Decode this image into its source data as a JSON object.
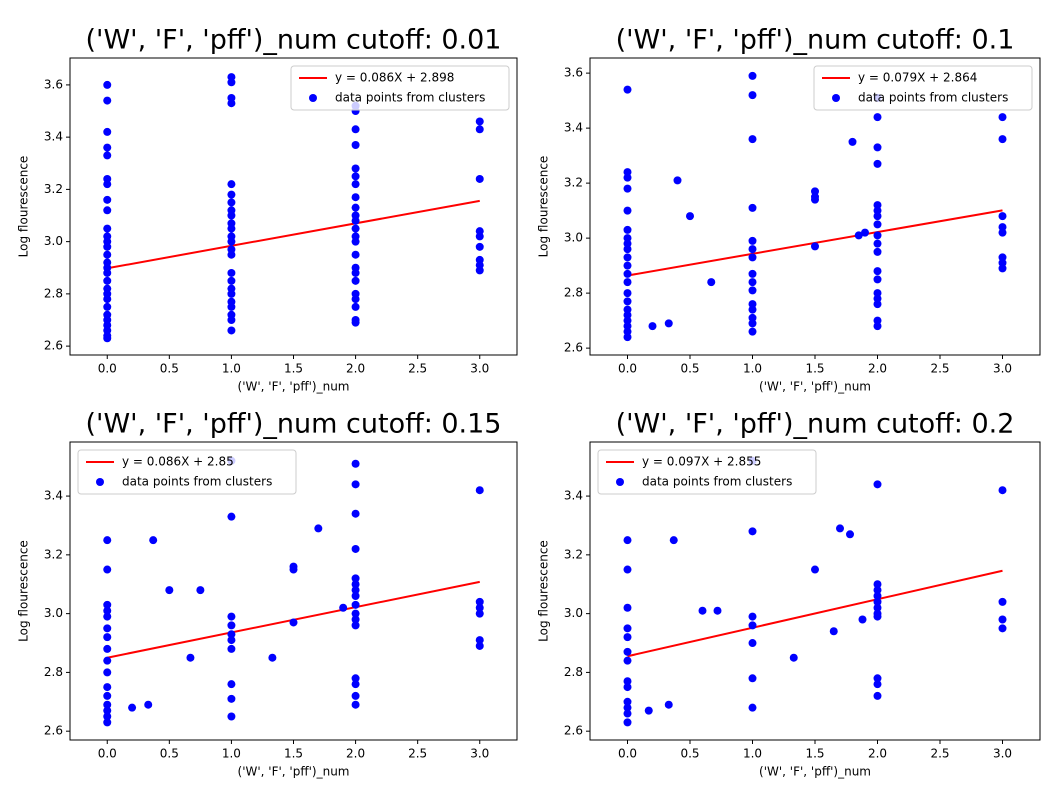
{
  "chart_data": [
    {
      "type": "scatter",
      "title": "('W', 'F', 'pff')_num cutoff: 0.01",
      "x_label": "('W', 'F', 'pff')_num",
      "y_label": "Log flourescence",
      "legend": "upper right",
      "xlim": [
        -0.3,
        3.3
      ],
      "ylim": [
        2.566,
        3.703
      ],
      "xticks": [
        {
          "value": 0,
          "label": "0.0"
        },
        0.5,
        {
          "value": 1,
          "label": "1.0"
        },
        1.5,
        {
          "value": 2,
          "label": "2.0"
        },
        2.5,
        {
          "value": 3,
          "label": "3.0"
        }
      ],
      "yticks": [
        2.6,
        2.8,
        {
          "value": 3,
          "label": "3.0"
        },
        3.2,
        3.4,
        3.6
      ],
      "series": [
        {
          "name": "y = 0.086X + 2.898",
          "type": "line",
          "color": "#ff0000",
          "x": [
            0,
            3
          ],
          "values": [
            2.898,
            3.156
          ]
        },
        {
          "name": "data points from clusters",
          "type": "scatter",
          "color": "#0000ff",
          "x": [
            0,
            0,
            0,
            0,
            0,
            0,
            0,
            0,
            0,
            0,
            0,
            0,
            0,
            0,
            0,
            0,
            0,
            0,
            0,
            0,
            0,
            0,
            0,
            0,
            0,
            0,
            0,
            0,
            1,
            1,
            1,
            1,
            1,
            1,
            1,
            1,
            1,
            1,
            1,
            1,
            1,
            1,
            1,
            1,
            1,
            1,
            1,
            1,
            1,
            1,
            1,
            1,
            2,
            2,
            2,
            2,
            2,
            2,
            2,
            2,
            2,
            2,
            2,
            2,
            2,
            2,
            2,
            2,
            2,
            2,
            2,
            2,
            2,
            2,
            2,
            3,
            3,
            3,
            3,
            3,
            3,
            3,
            3,
            3
          ],
          "values": [
            3.6,
            3.54,
            3.42,
            3.36,
            3.33,
            3.24,
            3.22,
            3.16,
            3.12,
            3.05,
            3.02,
            3.0,
            2.98,
            2.95,
            2.92,
            2.9,
            2.88,
            2.85,
            2.82,
            2.8,
            2.78,
            2.75,
            2.72,
            2.7,
            2.68,
            2.66,
            2.64,
            2.63,
            3.63,
            3.61,
            3.55,
            3.53,
            3.22,
            3.18,
            3.15,
            3.12,
            3.1,
            3.07,
            3.05,
            3.02,
            3.0,
            2.97,
            2.95,
            2.88,
            2.85,
            2.82,
            2.8,
            2.77,
            2.75,
            2.72,
            2.7,
            2.66,
            3.52,
            3.5,
            3.43,
            3.37,
            3.28,
            3.25,
            3.22,
            3.17,
            3.13,
            3.1,
            3.08,
            3.05,
            3.02,
            3.0,
            2.95,
            2.9,
            2.88,
            2.85,
            2.8,
            2.78,
            2.75,
            2.7,
            2.69,
            3.46,
            3.43,
            3.24,
            3.04,
            3.02,
            2.98,
            2.93,
            2.91,
            2.89
          ]
        }
      ]
    },
    {
      "type": "scatter",
      "title": "('W', 'F', 'pff')_num cutoff: 0.1",
      "x_label": "('W', 'F', 'pff')_num",
      "y_label": "Log flourescence",
      "legend": "upper right",
      "xlim": [
        -0.3,
        3.3
      ],
      "ylim": [
        2.575,
        3.655
      ],
      "xticks": [
        {
          "value": 0,
          "label": "0.0"
        },
        0.5,
        {
          "value": 1,
          "label": "1.0"
        },
        1.5,
        {
          "value": 2,
          "label": "2.0"
        },
        2.5,
        {
          "value": 3,
          "label": "3.0"
        }
      ],
      "yticks": [
        2.6,
        2.8,
        {
          "value": 3,
          "label": "3.0"
        },
        3.2,
        3.4,
        3.6
      ],
      "series": [
        {
          "name": "y = 0.079X + 2.864",
          "type": "line",
          "color": "#ff0000",
          "x": [
            0,
            3
          ],
          "values": [
            2.864,
            3.101
          ]
        },
        {
          "name": "data points from clusters",
          "type": "scatter",
          "color": "#0000ff",
          "x": [
            0,
            0,
            0,
            0,
            0,
            0,
            0,
            0,
            0,
            0,
            0,
            0,
            0,
            0,
            0,
            0,
            0,
            0,
            0,
            0,
            0,
            0.2,
            0.33,
            0.4,
            0.5,
            0.67,
            1,
            1,
            1,
            1,
            1,
            1,
            1,
            1,
            1,
            1,
            1,
            1,
            1,
            1,
            1,
            1.5,
            1.5,
            1.5,
            1.5,
            1.8,
            1.85,
            1.9,
            2,
            2,
            2,
            2,
            2,
            2,
            2,
            2,
            2,
            2,
            2,
            2,
            2,
            2,
            2,
            2,
            2,
            2,
            3,
            3,
            3,
            3,
            3,
            3,
            3,
            3
          ],
          "values": [
            3.54,
            3.24,
            3.22,
            3.18,
            3.1,
            3.03,
            3.0,
            2.98,
            2.96,
            2.93,
            2.9,
            2.87,
            2.84,
            2.8,
            2.77,
            2.74,
            2.72,
            2.7,
            2.68,
            2.66,
            2.64,
            2.68,
            2.69,
            3.21,
            3.08,
            2.84,
            3.59,
            3.52,
            3.36,
            3.11,
            2.99,
            2.96,
            2.93,
            2.87,
            2.84,
            2.81,
            2.76,
            2.74,
            2.71,
            2.69,
            2.66,
            3.17,
            3.15,
            3.14,
            2.97,
            3.35,
            3.01,
            3.02,
            3.51,
            3.44,
            3.33,
            3.27,
            3.12,
            3.1,
            3.08,
            3.05,
            3.01,
            2.98,
            2.95,
            2.88,
            2.85,
            2.8,
            2.78,
            2.76,
            2.7,
            2.68,
            3.44,
            3.36,
            3.08,
            3.04,
            3.02,
            2.93,
            2.91,
            2.89
          ]
        }
      ]
    },
    {
      "type": "scatter",
      "title": "('W', 'F', 'pff')_num cutoff: 0.15",
      "x_label": "('W', 'F', 'pff')_num",
      "y_label": "Log flourescence",
      "legend": "upper left",
      "xlim": [
        -0.3,
        3.3
      ],
      "ylim": [
        2.57,
        3.584
      ],
      "xticks": [
        {
          "value": 0,
          "label": "0.0"
        },
        0.5,
        {
          "value": 1,
          "label": "1.0"
        },
        1.5,
        {
          "value": 2,
          "label": "2.0"
        },
        2.5,
        {
          "value": 3,
          "label": "3.0"
        }
      ],
      "yticks": [
        2.6,
        2.8,
        {
          "value": 3,
          "label": "3.0"
        },
        3.2,
        3.4
      ],
      "series": [
        {
          "name": "y = 0.086X + 2.85",
          "type": "line",
          "color": "#ff0000",
          "x": [
            0,
            3
          ],
          "values": [
            2.85,
            3.108
          ]
        },
        {
          "name": "data points from clusters",
          "type": "scatter",
          "color": "#0000ff",
          "x": [
            0,
            0,
            0,
            0,
            0,
            0,
            0,
            0,
            0,
            0,
            0,
            0,
            0,
            0,
            0,
            0,
            0.2,
            0.33,
            0.37,
            0.5,
            0.67,
            0.75,
            1,
            1,
            1,
            1,
            1,
            1,
            1,
            1,
            1,
            1,
            1.33,
            1.5,
            1.5,
            1.5,
            1.7,
            1.9,
            2,
            2,
            2,
            2,
            2,
            2,
            2,
            2,
            2,
            2,
            2,
            2,
            2,
            2,
            2,
            2,
            3,
            3,
            3,
            3,
            3,
            3
          ],
          "values": [
            3.25,
            3.15,
            3.03,
            3.01,
            2.99,
            2.95,
            2.92,
            2.88,
            2.84,
            2.8,
            2.75,
            2.72,
            2.69,
            2.67,
            2.65,
            2.63,
            2.68,
            2.69,
            3.25,
            3.08,
            2.85,
            3.08,
            3.52,
            3.33,
            2.99,
            2.96,
            2.93,
            2.91,
            2.88,
            2.76,
            2.71,
            2.65,
            2.85,
            3.16,
            3.15,
            2.97,
            3.29,
            3.02,
            3.51,
            3.44,
            3.34,
            3.22,
            3.12,
            3.1,
            3.08,
            3.06,
            3.03,
            3.0,
            2.98,
            2.96,
            2.78,
            2.76,
            2.72,
            2.69,
            3.42,
            3.04,
            3.02,
            3.0,
            2.91,
            2.89
          ]
        }
      ]
    },
    {
      "type": "scatter",
      "title": "('W', 'F', 'pff')_num cutoff: 0.2",
      "x_label": "('W', 'F', 'pff')_num",
      "y_label": "Log flourescence",
      "legend": "upper left",
      "xlim": [
        -0.3,
        3.3
      ],
      "ylim": [
        2.57,
        3.584
      ],
      "xticks": [
        {
          "value": 0,
          "label": "0.0"
        },
        0.5,
        {
          "value": 1,
          "label": "1.0"
        },
        1.5,
        {
          "value": 2,
          "label": "2.0"
        },
        2.5,
        {
          "value": 3,
          "label": "3.0"
        }
      ],
      "yticks": [
        2.6,
        2.8,
        {
          "value": 3,
          "label": "3.0"
        },
        3.2,
        3.4
      ],
      "series": [
        {
          "name": "y = 0.097X + 2.855",
          "type": "line",
          "color": "#ff0000",
          "x": [
            0,
            3
          ],
          "values": [
            2.855,
            3.146
          ]
        },
        {
          "name": "data points from clusters",
          "type": "scatter",
          "color": "#0000ff",
          "x": [
            0,
            0,
            0,
            0,
            0,
            0,
            0,
            0,
            0,
            0,
            0,
            0,
            0,
            0.17,
            0.33,
            0.37,
            0.6,
            0.72,
            1,
            1,
            1,
            1,
            1,
            1,
            1,
            1.33,
            1.5,
            1.65,
            1.7,
            1.78,
            1.88,
            2,
            2,
            2,
            2,
            2,
            2,
            2,
            2,
            2,
            2,
            2,
            3,
            3,
            3,
            3
          ],
          "values": [
            3.25,
            3.15,
            3.02,
            2.95,
            2.92,
            2.87,
            2.84,
            2.77,
            2.75,
            2.7,
            2.68,
            2.66,
            2.63,
            2.67,
            2.69,
            3.25,
            3.01,
            3.01,
            3.52,
            3.28,
            2.99,
            2.96,
            2.9,
            2.78,
            2.68,
            2.85,
            3.15,
            2.94,
            3.29,
            3.27,
            2.98,
            3.44,
            3.1,
            3.08,
            3.06,
            3.04,
            3.02,
            3.0,
            2.99,
            2.78,
            2.76,
            2.72,
            3.42,
            3.04,
            2.98,
            2.95
          ]
        }
      ]
    }
  ]
}
